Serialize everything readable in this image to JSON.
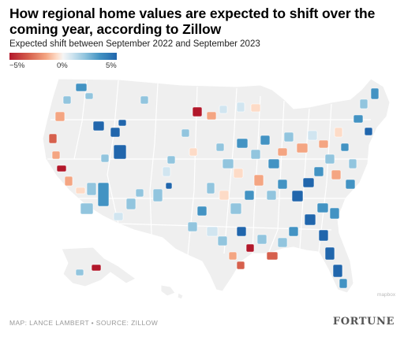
{
  "header": {
    "title": "How regional home values are expected to shift over the coming year, according to Zillow",
    "subtitle": "Expected shift between September 2022 and September 2023"
  },
  "legend": {
    "min_label": "−5%",
    "mid_label": "0%",
    "max_label": "5%",
    "colors": {
      "strong_negative": "#b2182b",
      "negative": "#d6604d",
      "mild_negative": "#f4a582",
      "slight_negative": "#fddbc7",
      "neutral": "#f5f5f5",
      "slight_positive": "#d1e5f0",
      "mild_positive": "#92c5de",
      "positive": "#4393c3",
      "strong_positive": "#2166ac"
    }
  },
  "map": {
    "base_fill": "#efefef",
    "border_color": "#ffffff",
    "mexico_label": "mapbox"
  },
  "footer": {
    "credit": "MAP: LANCE LAMBERT • SOURCE: ZILLOW",
    "brand": "FORTUNE"
  }
}
